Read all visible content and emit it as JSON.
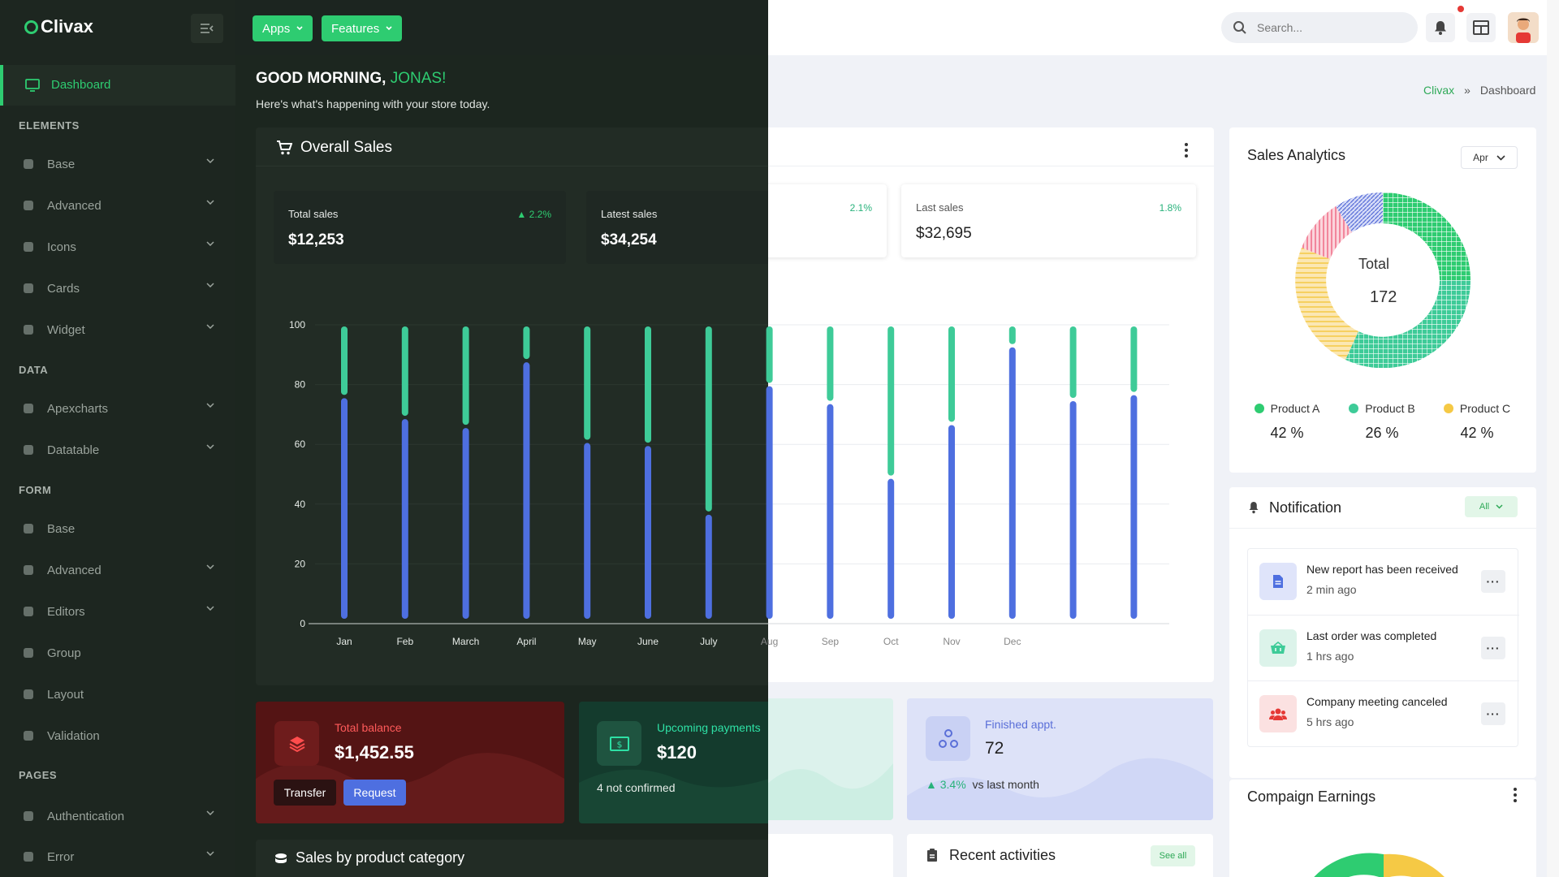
{
  "brand": {
    "name": "Clivax"
  },
  "topbar": {
    "apps_label": "Apps",
    "features_label": "Features",
    "search_placeholder": "Search..."
  },
  "sidebar": {
    "active_label": "Dashboard",
    "sections": {
      "elements": "ELEMENTS",
      "data": "DATA",
      "form": "FORM",
      "pages": "PAGES"
    },
    "items": [
      {
        "label": "Base",
        "icon": "palette-icon"
      },
      {
        "label": "Advanced",
        "icon": "half-circle-icon"
      },
      {
        "label": "Icons",
        "icon": "icons-grid-icon"
      },
      {
        "label": "Cards",
        "icon": "cards-icon"
      },
      {
        "label": "Widget",
        "icon": "widget-icon"
      },
      {
        "label": "Apexcharts",
        "icon": "pie-chart-icon"
      },
      {
        "label": "Datatable",
        "icon": "table-icon"
      },
      {
        "label": "Base",
        "icon": "form-base-icon"
      },
      {
        "label": "Advanced",
        "icon": "brush-icon"
      },
      {
        "label": "Editors",
        "icon": "editor-icon"
      },
      {
        "label": "Group",
        "icon": "list-icon"
      },
      {
        "label": "Layout",
        "icon": "layout-icon"
      },
      {
        "label": "Validation",
        "icon": "check-icon"
      },
      {
        "label": "Authentication",
        "icon": "lock-icon"
      },
      {
        "label": "Error",
        "icon": "error-icon"
      }
    ]
  },
  "greeting": {
    "prefix": "GOOD MORNING,",
    "name": "JONAS!",
    "subtitle": "Here's what's happening with your store today."
  },
  "breadcrumb": {
    "root": "Clivax",
    "separator": "»",
    "current": "Dashboard"
  },
  "overall_sales": {
    "title": "Overall Sales",
    "stats": [
      {
        "label": "Total sales",
        "value": "$12,253",
        "trend": "2.2%"
      },
      {
        "label": "Latest sales",
        "value": "$34,254",
        "trend": "2.1%"
      },
      {
        "label": "Last sales",
        "value": "$32,695",
        "trend": "1.8%"
      }
    ]
  },
  "chart_data": {
    "type": "bar",
    "stacked": true,
    "categories": [
      "Jan",
      "Feb",
      "March",
      "April",
      "May",
      "June",
      "July",
      "Aug",
      "Sep",
      "Oct",
      "Nov",
      "Dec",
      "",
      ""
    ],
    "series": [
      {
        "values": [
          76,
          69,
          66,
          88,
          61,
          60,
          37,
          80,
          74,
          49,
          67,
          93,
          75,
          77
        ]
      },
      {
        "values": [
          24,
          31,
          34,
          12,
          39,
          40,
          63,
          20,
          26,
          51,
          33,
          7,
          25,
          23
        ]
      }
    ],
    "ylim": [
      0,
      100
    ],
    "yticks": [
      0,
      20,
      40,
      60,
      80,
      100
    ],
    "colors": [
      "#4e6fe0",
      "#3ecb98"
    ],
    "grid": true
  },
  "balance": {
    "label": "Total balance",
    "value": "$1,452.55",
    "transfer": "Transfer",
    "request": "Request"
  },
  "upcoming": {
    "label": "Upcoming payments",
    "value": "$120",
    "sub": "4 not confirmed"
  },
  "finished": {
    "label": "Finished appt.",
    "value": "72",
    "trend": "3.4%",
    "trend_suffix": "vs last month"
  },
  "recent": {
    "title": "Recent activities",
    "see_all": "See all"
  },
  "sales_category": {
    "title": "Sales by product category"
  },
  "analytics": {
    "title": "Sales Analytics",
    "month": "Apr",
    "center_label": "Total",
    "center_value": "172",
    "legend": [
      {
        "name": "Product A",
        "pct": "42 %",
        "color": "#2ecc71"
      },
      {
        "name": "Product B",
        "pct": "26 %",
        "color": "#3ecb98"
      },
      {
        "name": "Product C",
        "pct": "42 %",
        "color": "#f5c945"
      }
    ]
  },
  "notification": {
    "title": "Notification",
    "filter": "All",
    "items": [
      {
        "text": "New report has been received",
        "time": "2 min ago",
        "icon": "document-icon"
      },
      {
        "text": "Last order was completed",
        "time": "1 hrs ago",
        "icon": "basket-icon"
      },
      {
        "text": "Company meeting canceled",
        "time": "5 hrs ago",
        "icon": "users-icon"
      }
    ]
  },
  "campaign": {
    "title": "Compaign Earnings"
  }
}
